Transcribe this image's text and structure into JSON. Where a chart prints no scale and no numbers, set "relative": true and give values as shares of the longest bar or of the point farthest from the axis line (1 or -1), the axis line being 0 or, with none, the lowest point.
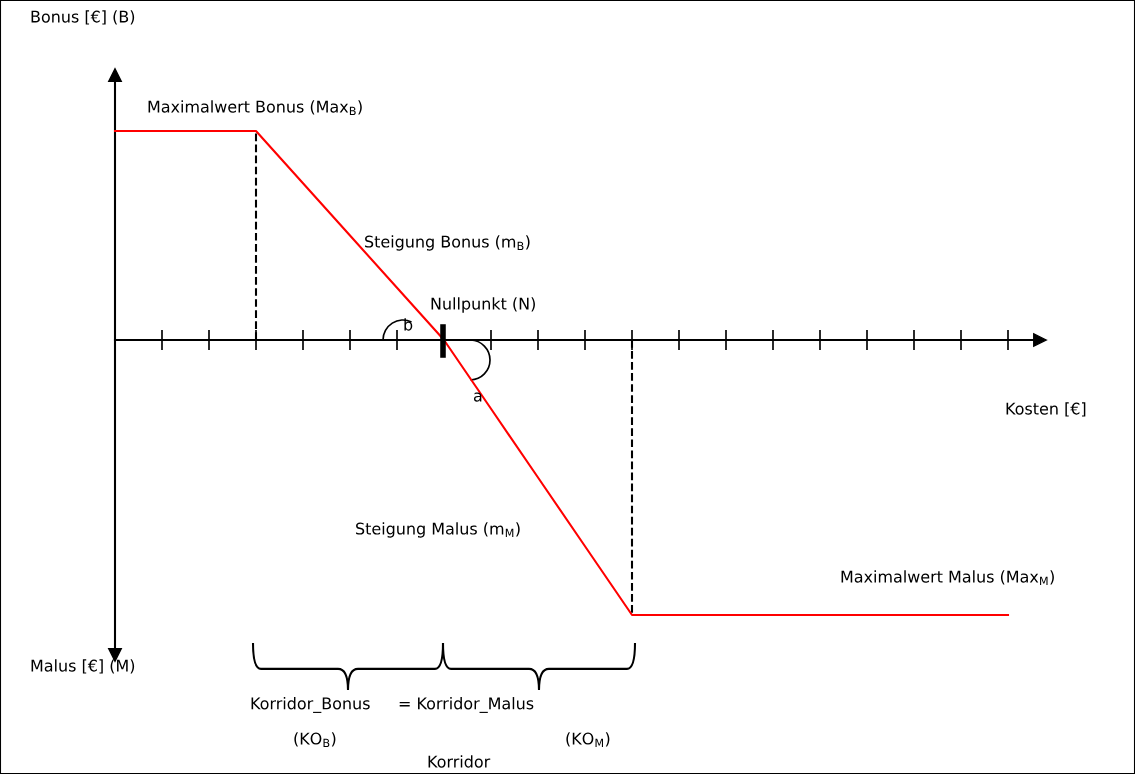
{
  "chart_data": {
    "type": "line",
    "relative": true,
    "xlabel": "Kosten [€]",
    "categories": [
      null,
      null,
      null,
      null,
      null,
      null,
      null,
      null,
      null,
      null,
      null,
      null,
      null,
      null,
      null,
      null,
      null,
      null,
      null,
      null
    ],
    "series": [
      {
        "color": "#ff0000",
        "values": [
          0.76,
          0.76,
          0.76,
          0.76,
          0.57,
          0.38,
          0.19,
          0,
          -0.25,
          -0.5,
          -0.75,
          -1,
          -1,
          -1,
          -1,
          -1,
          -1,
          -1,
          -1,
          -1
        ]
      }
    ],
    "annotations": [
      "Bonus [€] (B)",
      "Malus [€] (M)",
      "Maximalwert Bonus (Max$_{B}$)",
      "Steigung Bonus (m$_{B}$)",
      "Nullpunkt (N)",
      "b",
      "a",
      "Steigung Malus (m$_{M}$)",
      "Maximalwert Malus (Max$_{M}$)",
      "Korridor_Bonus",
      "= Korridor_Malus",
      "(KO$_{B}$)",
      "(KO$_{M}$)",
      "Korridor"
    ],
    "grid": false,
    "marker": "none",
    "line_style": "solid"
  }
}
